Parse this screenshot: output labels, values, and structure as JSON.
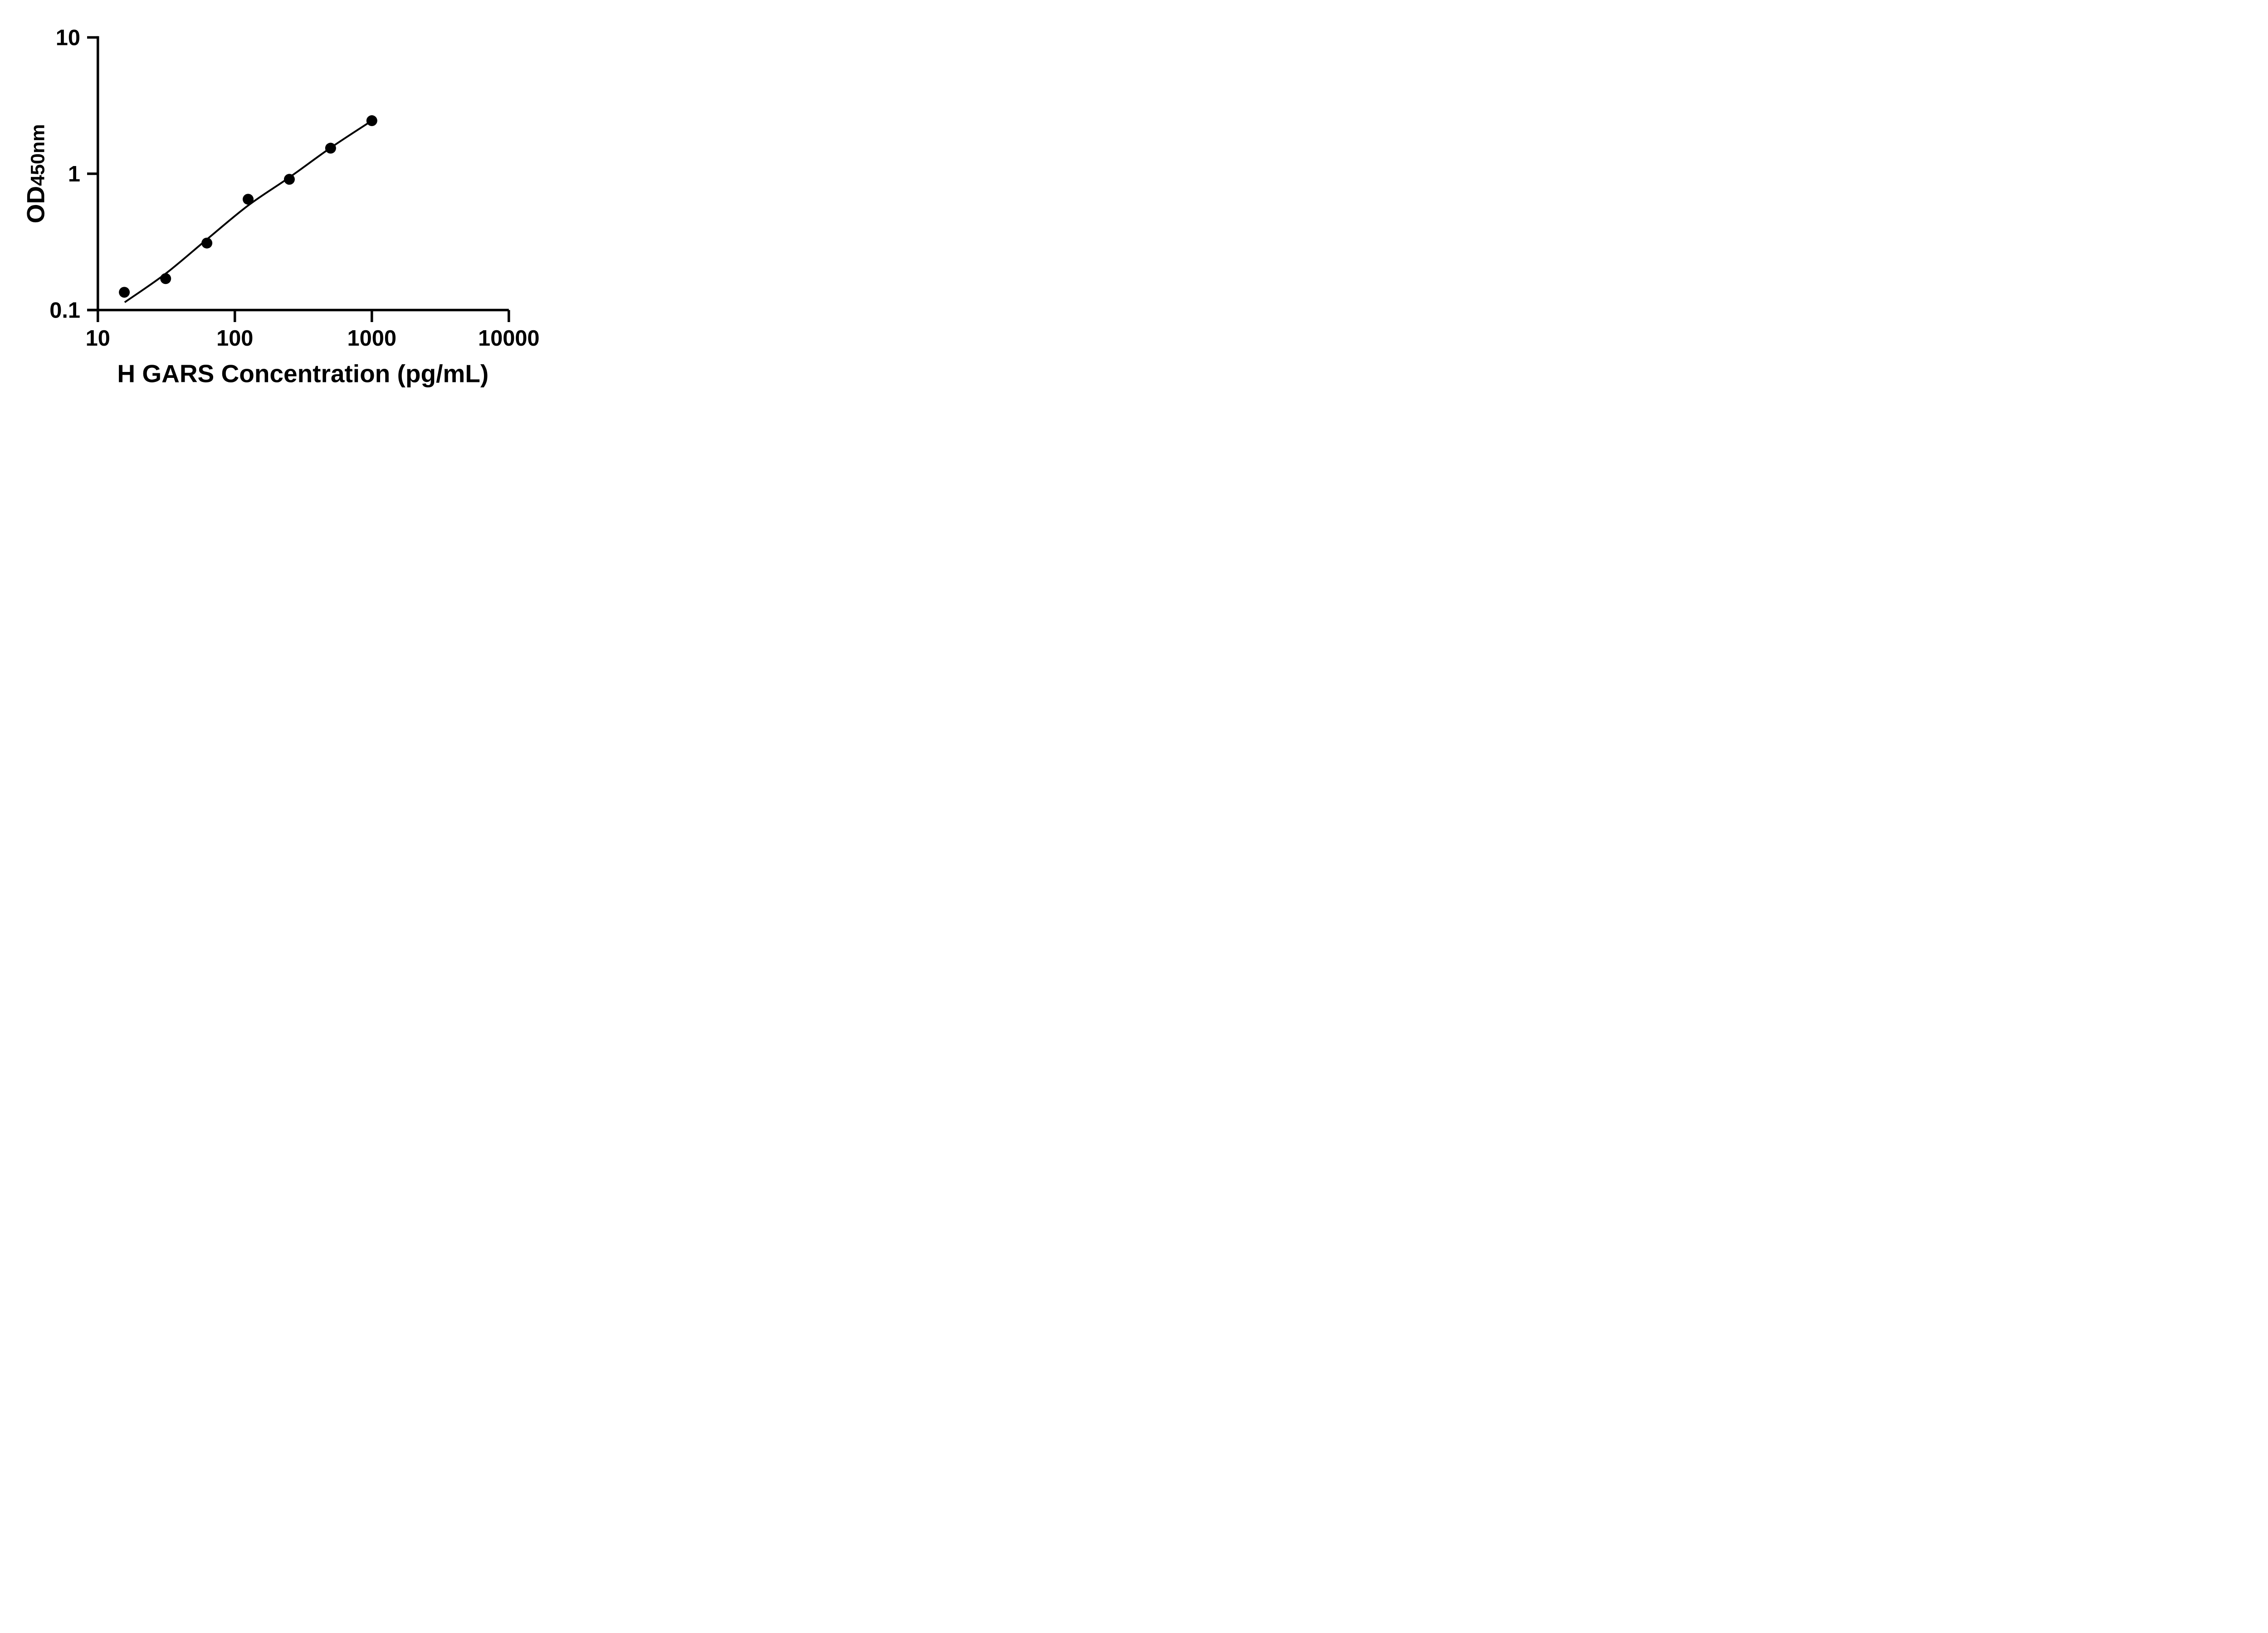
{
  "figure": {
    "background": "#ffffff",
    "ink": "#000000"
  },
  "chart_data": {
    "type": "scatter",
    "title": "",
    "xlabel": "H GARS Concentration (pg/mL)",
    "ylabel_main": "OD",
    "ylabel_sub": "450nm",
    "x_scale": "log",
    "y_scale": "log",
    "xlim": [
      10,
      10000
    ],
    "ylim": [
      0.1,
      10
    ],
    "grid": false,
    "legend": null,
    "x_ticks": [
      {
        "value": 10,
        "label": "10"
      },
      {
        "value": 100,
        "label": "100"
      },
      {
        "value": 1000,
        "label": "1000"
      },
      {
        "value": 10000,
        "label": "10000"
      }
    ],
    "y_ticks": [
      {
        "value": 10,
        "label": "10"
      },
      {
        "value": 1,
        "label": "1"
      },
      {
        "value": 0.1,
        "label": "0.1"
      }
    ],
    "points": [
      {
        "x": 15.6,
        "y": 0.135
      },
      {
        "x": 31.25,
        "y": 0.17
      },
      {
        "x": 62.5,
        "y": 0.31
      },
      {
        "x": 125,
        "y": 0.65
      },
      {
        "x": 250,
        "y": 0.91
      },
      {
        "x": 500,
        "y": 1.54
      },
      {
        "x": 1000,
        "y": 2.45
      }
    ],
    "trend_line": [
      [
        15.7,
        0.114
      ],
      [
        31.25,
        0.185
      ],
      [
        62.5,
        0.33
      ],
      [
        125,
        0.585
      ],
      [
        250,
        0.94
      ],
      [
        500,
        1.55
      ],
      [
        1000,
        2.45
      ]
    ],
    "marker_color": "#000000",
    "line_color": "#000000",
    "axis_color": "#000000",
    "marker_radius": 48
  }
}
